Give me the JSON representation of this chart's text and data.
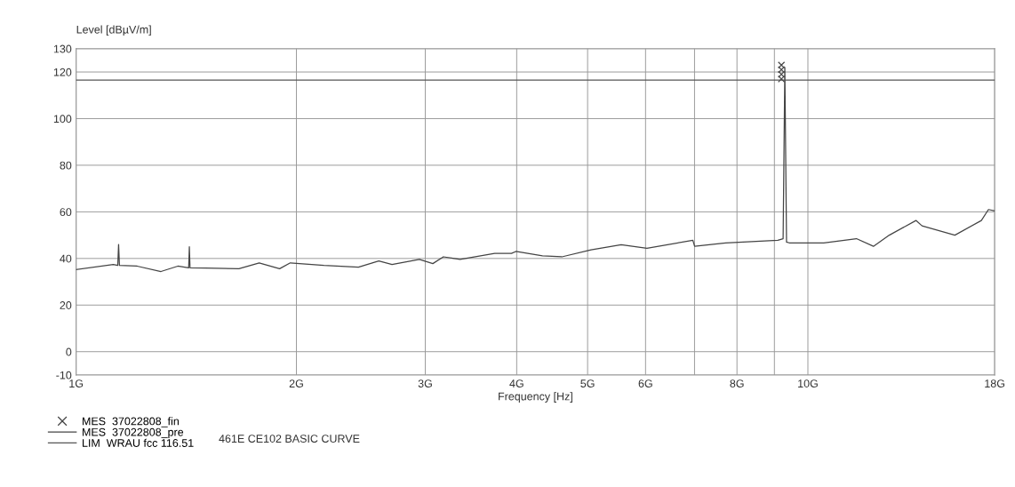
{
  "chart_data": {
    "type": "line",
    "ylabel": "Level [dBµV/m]",
    "xlabel": "Frequency [Hz]",
    "log": "x",
    "xlim": [
      1,
      18
    ],
    "xticks": [
      {
        "value": 1,
        "label": "1G"
      },
      {
        "value": 2,
        "label": "2G"
      },
      {
        "value": 3,
        "label": "3G"
      },
      {
        "value": 4,
        "label": "4G"
      },
      {
        "value": 5,
        "label": "5G"
      },
      {
        "value": 6,
        "label": "6G"
      },
      {
        "value": 7,
        "label": null
      },
      {
        "value": 8,
        "label": "8G"
      },
      {
        "value": 9,
        "label": null
      },
      {
        "value": 10,
        "label": "10G"
      },
      {
        "value": 18,
        "label": "18G"
      }
    ],
    "ylim": [
      -10,
      130
    ],
    "yticks": [
      -10,
      0,
      20,
      40,
      60,
      80,
      100,
      120,
      130
    ],
    "grid": true,
    "legend": "bottom left",
    "series": [
      {
        "name": "MES  37022808_fin",
        "type": "scatter",
        "marker": "cross",
        "color": "#444444",
        "x": [
          9.2,
          9.2,
          9.2,
          9.2
        ],
        "values": [
          123,
          121,
          119,
          117
        ]
      },
      {
        "name": "MES  37022808_pre",
        "color": "#444444",
        "x": [
          1,
          1.124,
          1.14,
          1.143,
          1.146,
          1.212,
          1.306,
          1.377,
          1.425,
          1.428,
          1.431,
          1.501,
          1.669,
          1.779,
          1.897,
          1.962,
          2.181,
          2.431,
          2.592,
          2.702,
          2.945,
          3.072,
          3.176,
          3.347,
          3.732,
          3.935,
          3.99,
          4.338,
          4.611,
          5.055,
          5.557,
          6.026,
          6.963,
          7.002,
          7.719,
          9.097,
          9.25,
          9.3,
          9.35,
          9.43,
          10.51,
          11.65,
          12.29,
          12.92,
          14.05,
          14.32,
          15.88,
          17.26,
          17.65,
          17.99
        ],
        "values": [
          35.2,
          37.4,
          37,
          46,
          37,
          36.7,
          34.4,
          36.7,
          36,
          45,
          36,
          35.9,
          35.6,
          38.1,
          35.6,
          38.1,
          37,
          36.3,
          38.9,
          37.4,
          39.6,
          37.8,
          40.7,
          39.6,
          42.2,
          42.2,
          43,
          41.1,
          40.7,
          43.7,
          45.9,
          44.4,
          47.8,
          45.2,
          46.7,
          47.8,
          48.5,
          122,
          47,
          46.7,
          46.7,
          48.5,
          45.2,
          50,
          56.3,
          54,
          50,
          56.3,
          61,
          60.4
        ]
      },
      {
        "name": "LIM  WRAU fcc 116.51",
        "color": "#555555",
        "x": [
          1,
          18
        ],
        "values": [
          116.51,
          116.51
        ]
      }
    ],
    "annotations": [
      "461E CE102 BASIC CURVE"
    ]
  }
}
